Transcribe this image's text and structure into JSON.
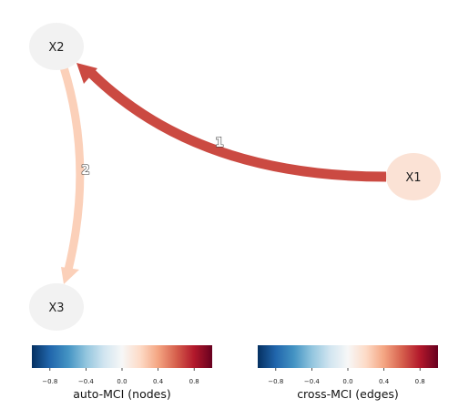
{
  "nodes": [
    {
      "id": "X1",
      "label": "X1",
      "color": "#fbe2d5"
    },
    {
      "id": "X2",
      "label": "X2",
      "color": "#f2f2f2"
    },
    {
      "id": "X3",
      "label": "X3",
      "color": "#f2f2f2"
    }
  ],
  "edges": [
    {
      "from": "X1",
      "to": "X2",
      "label": "1",
      "color": "#cb4a42"
    },
    {
      "from": "X2",
      "to": "X3",
      "label": "2",
      "color": "#fbd0b9"
    }
  ],
  "colorbars": [
    {
      "title": "auto-MCI (nodes)",
      "ticks": [
        "−0.8",
        "−0.4",
        "0.0",
        "0.4",
        "0.8"
      ]
    },
    {
      "title": "cross-MCI (edges)",
      "ticks": [
        "−0.8",
        "−0.4",
        "0.0",
        "0.4",
        "0.8"
      ]
    }
  ],
  "colormap": {
    "name": "RdBu_r",
    "range": [
      -1,
      1
    ],
    "stops": [
      "#053061",
      "#2166ac",
      "#4393c3",
      "#92c5de",
      "#d1e5f0",
      "#f7f7f7",
      "#fddbc7",
      "#f4a582",
      "#d6604d",
      "#b2182b",
      "#67001f"
    ]
  }
}
